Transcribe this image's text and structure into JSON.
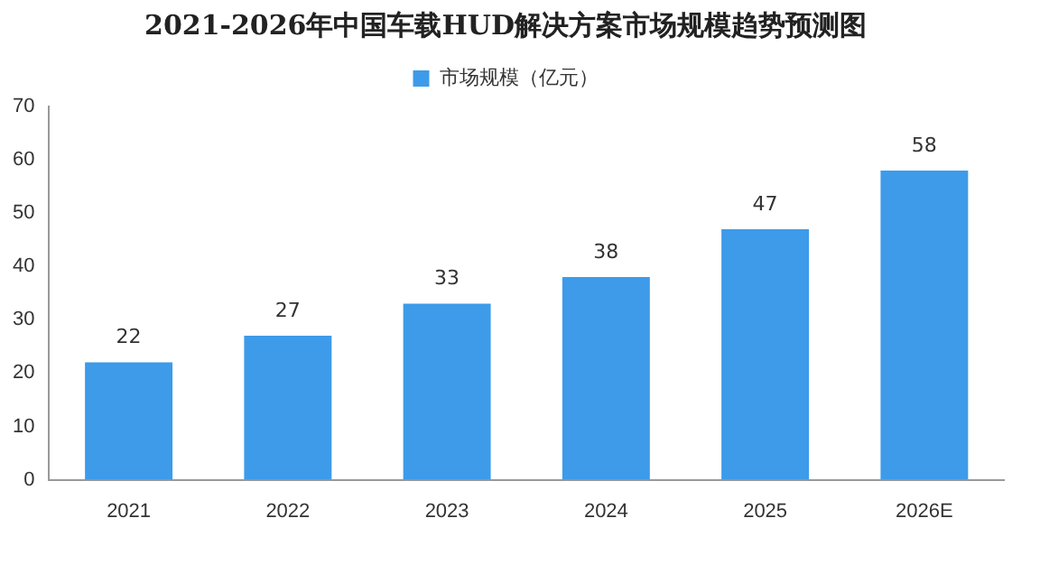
{
  "chart_data": {
    "type": "bar",
    "title": "2021-2026年中国车载HUD解决方案市场规模趋势预测图",
    "categories": [
      "2021",
      "2022",
      "2023",
      "2024",
      "2025",
      "2026E"
    ],
    "series": [
      {
        "name": "市场规模（亿元）",
        "color": "#3d9be9",
        "values": [
          22,
          27,
          33,
          38,
          47,
          58
        ]
      }
    ],
    "ylim": [
      0,
      70
    ],
    "yticks": [
      0,
      10,
      20,
      30,
      40,
      50,
      60,
      70
    ],
    "grid": false,
    "legend": "top",
    "data_labels": true
  }
}
